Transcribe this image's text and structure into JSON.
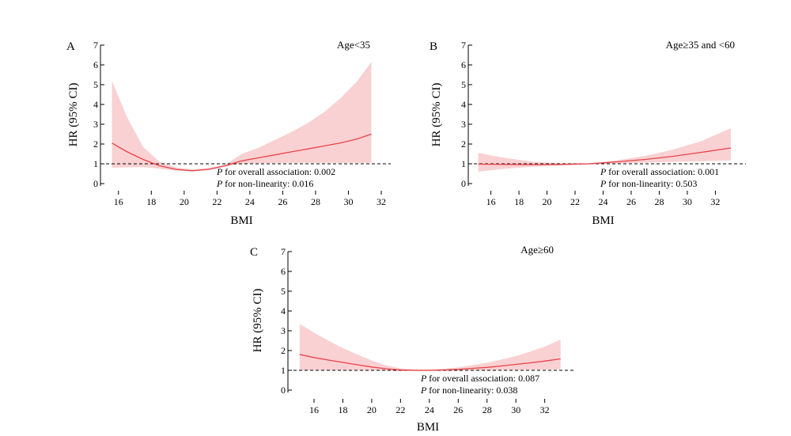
{
  "colors": {
    "line": "#e8434a",
    "band": "#f9d1d2",
    "reference": "#000000",
    "axis": "#000000"
  },
  "chart_data": [
    {
      "type": "line",
      "panel": "A",
      "subset_label": "Age<35",
      "xlabel": "BMI",
      "ylabel": "HR (95% CI)",
      "xlim": [
        15,
        32
      ],
      "ylim": [
        0,
        7
      ],
      "x_ticks": [
        16,
        18,
        20,
        22,
        24,
        26,
        28,
        30,
        32
      ],
      "y_ticks": [
        0,
        1,
        2,
        3,
        4,
        5,
        6,
        7
      ],
      "reference_line": 1,
      "annotations": [
        "P for overall association: 0.002",
        "P for non-linearity: 0.016"
      ],
      "series": [
        {
          "x": [
            15.6,
            16.5,
            17.5,
            18.5,
            19.5,
            20.5,
            21.5,
            22.5,
            23.5,
            24.5,
            25.5,
            26.5,
            27.5,
            28.5,
            29.5,
            30.5,
            31.4
          ],
          "y": [
            2.05,
            1.62,
            1.22,
            0.9,
            0.72,
            0.65,
            0.72,
            0.9,
            1.15,
            1.3,
            1.45,
            1.6,
            1.75,
            1.9,
            2.05,
            2.25,
            2.5
          ],
          "lo": [
            0.8,
            0.82,
            0.83,
            0.75,
            0.65,
            0.62,
            0.68,
            0.86,
            1.0,
            1.03,
            1.04,
            1.05,
            1.05,
            1.05,
            1.05,
            1.05,
            1.05
          ],
          "hi": [
            5.2,
            3.4,
            1.85,
            1.1,
            0.82,
            0.72,
            0.8,
            0.95,
            1.5,
            1.8,
            2.2,
            2.6,
            3.05,
            3.6,
            4.3,
            5.15,
            6.15
          ]
        }
      ]
    },
    {
      "type": "line",
      "panel": "B",
      "subset_label": "Age≥35 and <60",
      "xlabel": "BMI",
      "ylabel": "HR (95% CI)",
      "xlim": [
        14.5,
        33.5
      ],
      "ylim": [
        0,
        7
      ],
      "x_ticks": [
        16,
        18,
        20,
        22,
        24,
        26,
        28,
        30,
        32
      ],
      "y_ticks": [
        0,
        1,
        2,
        3,
        4,
        5,
        6,
        7
      ],
      "reference_line": 1,
      "annotations": [
        "P for overall association: 0.001",
        "P for non-linearity: 0.503"
      ],
      "series": [
        {
          "x": [
            15.1,
            17,
            19,
            21,
            23,
            24,
            25,
            27,
            29,
            31,
            33.1
          ],
          "y": [
            0.98,
            0.97,
            0.96,
            0.97,
            1.0,
            1.05,
            1.1,
            1.22,
            1.38,
            1.58,
            1.8
          ],
          "lo": [
            0.6,
            0.75,
            0.85,
            0.92,
            0.97,
            1.0,
            1.02,
            1.06,
            1.1,
            1.13,
            1.17
          ],
          "hi": [
            1.55,
            1.3,
            1.1,
            1.03,
            1.03,
            1.1,
            1.18,
            1.4,
            1.72,
            2.15,
            2.8
          ]
        }
      ]
    },
    {
      "type": "line",
      "panel": "C",
      "subset_label": "Age≥60",
      "xlabel": "BMI",
      "ylabel": "HR (95% CI)",
      "xlim": [
        14.3,
        33.5
      ],
      "ylim": [
        0,
        7
      ],
      "x_ticks": [
        16,
        18,
        20,
        22,
        24,
        26,
        28,
        30,
        32
      ],
      "y_ticks": [
        0,
        1,
        2,
        3,
        4,
        5,
        6,
        7
      ],
      "reference_line": 1,
      "annotations": [
        "P for overall association: 0.087",
        "P for non-linearity: 0.038"
      ],
      "series": [
        {
          "x": [
            15,
            16,
            17,
            18,
            19,
            20,
            21,
            22,
            23,
            24,
            25,
            26,
            27,
            28,
            29,
            30,
            31,
            32,
            33.1
          ],
          "y": [
            1.8,
            1.65,
            1.52,
            1.4,
            1.28,
            1.17,
            1.08,
            1.02,
            1.0,
            1.0,
            1.02,
            1.05,
            1.1,
            1.15,
            1.22,
            1.3,
            1.38,
            1.47,
            1.58
          ],
          "lo": [
            1.0,
            1.0,
            1.0,
            1.0,
            1.0,
            1.0,
            0.98,
            0.96,
            0.96,
            0.96,
            0.97,
            0.98,
            0.99,
            1.0,
            1.01,
            1.02,
            1.03,
            1.04,
            1.05
          ],
          "hi": [
            3.35,
            2.9,
            2.5,
            2.12,
            1.8,
            1.5,
            1.25,
            1.1,
            1.04,
            1.04,
            1.08,
            1.15,
            1.26,
            1.38,
            1.55,
            1.72,
            1.95,
            2.2,
            2.55
          ]
        }
      ]
    }
  ]
}
